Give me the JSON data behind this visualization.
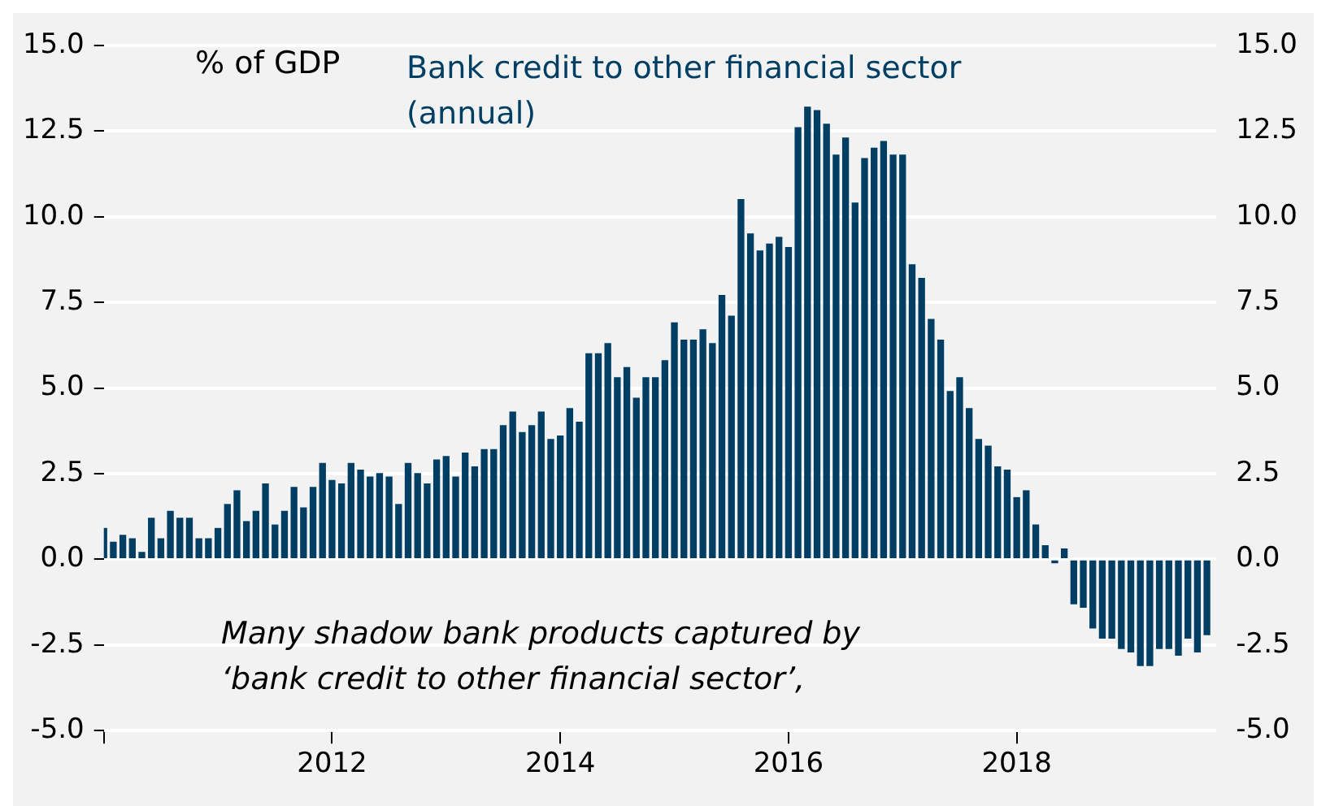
{
  "chart_data": {
    "type": "bar",
    "title": "Bank credit to other financial sector (annual)",
    "ylabel": "% of GDP",
    "annotations": [
      "Many shadow bank products captured by ‘bank credit to other financial sector’,"
    ],
    "x": [
      "2010-01",
      "2010-02",
      "2010-03",
      "2010-04",
      "2010-05",
      "2010-06",
      "2010-07",
      "2010-08",
      "2010-09",
      "2010-10",
      "2010-11",
      "2010-12",
      "2011-01",
      "2011-02",
      "2011-03",
      "2011-04",
      "2011-05",
      "2011-06",
      "2011-07",
      "2011-08",
      "2011-09",
      "2011-10",
      "2011-11",
      "2011-12",
      "2012-01",
      "2012-02",
      "2012-03",
      "2012-04",
      "2012-05",
      "2012-06",
      "2012-07",
      "2012-08",
      "2012-09",
      "2012-10",
      "2012-11",
      "2012-12",
      "2013-01",
      "2013-02",
      "2013-03",
      "2013-04",
      "2013-05",
      "2013-06",
      "2013-07",
      "2013-08",
      "2013-09",
      "2013-10",
      "2013-11",
      "2013-12",
      "2014-01",
      "2014-02",
      "2014-03",
      "2014-04",
      "2014-05",
      "2014-06",
      "2014-07",
      "2014-08",
      "2014-09",
      "2014-10",
      "2014-11",
      "2014-12",
      "2015-01",
      "2015-02",
      "2015-03",
      "2015-04",
      "2015-05",
      "2015-06",
      "2015-07",
      "2015-08",
      "2015-09",
      "2015-10",
      "2015-11",
      "2015-12",
      "2016-01",
      "2016-02",
      "2016-03",
      "2016-04",
      "2016-05",
      "2016-06",
      "2016-07",
      "2016-08",
      "2016-09",
      "2016-10",
      "2016-11",
      "2016-12",
      "2017-01",
      "2017-02",
      "2017-03",
      "2017-04",
      "2017-05",
      "2017-06",
      "2017-07",
      "2017-08",
      "2017-09",
      "2017-10",
      "2017-11",
      "2017-12",
      "2018-01",
      "2018-02",
      "2018-03",
      "2018-04",
      "2018-05",
      "2018-06",
      "2018-07",
      "2018-08",
      "2018-09",
      "2018-10",
      "2018-11",
      "2018-12",
      "2019-01",
      "2019-02",
      "2019-03",
      "2019-04",
      "2019-05",
      "2019-06",
      "2019-07",
      "2019-08",
      "2019-09"
    ],
    "values": [
      0.9,
      0.5,
      0.7,
      0.6,
      0.2,
      1.2,
      0.6,
      1.4,
      1.2,
      1.2,
      0.6,
      0.6,
      0.9,
      1.6,
      2.0,
      1.1,
      1.4,
      2.2,
      1.0,
      1.4,
      2.1,
      1.5,
      2.1,
      2.8,
      2.3,
      2.2,
      2.8,
      2.6,
      2.4,
      2.5,
      2.4,
      1.6,
      2.8,
      2.5,
      2.2,
      2.9,
      3.0,
      2.4,
      3.1,
      2.7,
      3.2,
      3.2,
      3.9,
      4.3,
      3.7,
      3.9,
      4.3,
      3.5,
      3.6,
      4.4,
      4.0,
      6.0,
      6.0,
      6.3,
      5.3,
      5.6,
      4.7,
      5.3,
      5.3,
      5.8,
      6.9,
      6.4,
      6.4,
      6.7,
      6.3,
      7.7,
      7.1,
      10.5,
      9.5,
      9.0,
      9.2,
      9.4,
      9.1,
      12.6,
      13.2,
      13.1,
      12.7,
      11.8,
      12.3,
      10.4,
      11.7,
      12.0,
      12.2,
      11.8,
      11.8,
      8.6,
      8.2,
      7.0,
      6.4,
      4.9,
      5.3,
      4.4,
      3.5,
      3.3,
      2.7,
      2.6,
      1.8,
      2.0,
      1.0,
      0.4,
      -0.1,
      0.3,
      -1.3,
      -1.4,
      -2.0,
      -2.3,
      -2.3,
      -2.6,
      -2.7,
      -3.1,
      -3.1,
      -2.6,
      -2.6,
      -2.8,
      -2.3,
      -2.7,
      -2.2
    ],
    "color": "#003f63",
    "xlim": [
      "2010",
      "2019-10"
    ],
    "xticks": [
      {
        "value": "2010",
        "label": null
      },
      "2012",
      "2014",
      "2016",
      "2018"
    ],
    "ylim": [
      -5,
      15
    ],
    "yticks": [
      {
        "value": -5,
        "label": "-5.0"
      },
      {
        "value": -2.5,
        "label": "-2.5"
      },
      {
        "value": 0,
        "label": "0.0"
      },
      {
        "value": 2.5,
        "label": "2.5"
      },
      {
        "value": 5,
        "label": "5.0"
      },
      {
        "value": 7.5,
        "label": "7.5"
      },
      {
        "value": 10,
        "label": "10.0"
      },
      {
        "value": 12.5,
        "label": "12.5"
      },
      {
        "value": 15,
        "label": "15.0"
      }
    ],
    "y2lim": [
      -5,
      15
    ],
    "y2ticks": [
      {
        "value": -5,
        "label": "-5.0"
      },
      {
        "value": -2.5,
        "label": "-2.5"
      },
      {
        "value": 0,
        "label": "0.0"
      },
      {
        "value": 2.5,
        "label": "2.5"
      },
      {
        "value": 5,
        "label": "5.0"
      },
      {
        "value": 7.5,
        "label": "7.5"
      },
      {
        "value": 10,
        "label": "10.0"
      },
      {
        "value": 12.5,
        "label": "12.5"
      },
      {
        "value": 15,
        "label": "15.0"
      }
    ],
    "grid": "y"
  }
}
